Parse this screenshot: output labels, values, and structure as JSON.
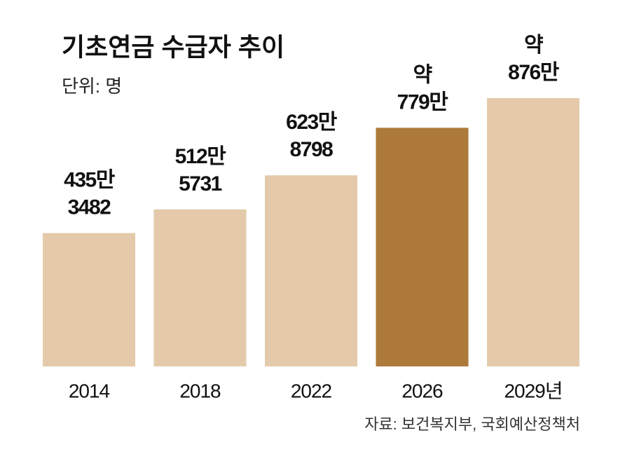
{
  "chart_data": {
    "type": "bar",
    "title": "기초연금 수급자 추이",
    "subtitle": "단위: 명",
    "categories": [
      "2014",
      "2018",
      "2022",
      "2026",
      "2029년"
    ],
    "values": [
      4353482,
      5125731,
      6238798,
      7790000,
      8760000
    ],
    "value_labels": [
      [
        "435만",
        "3482"
      ],
      [
        "512만",
        "5731"
      ],
      [
        "623만",
        "8798"
      ],
      [
        "약",
        "779만"
      ],
      [
        "약",
        "876만"
      ]
    ],
    "colors": [
      "#e4caab",
      "#e4caab",
      "#e4caab",
      "#ad7a3b",
      "#e4caab"
    ],
    "source": "자료: 보건복지부, 국회예산정책처"
  }
}
